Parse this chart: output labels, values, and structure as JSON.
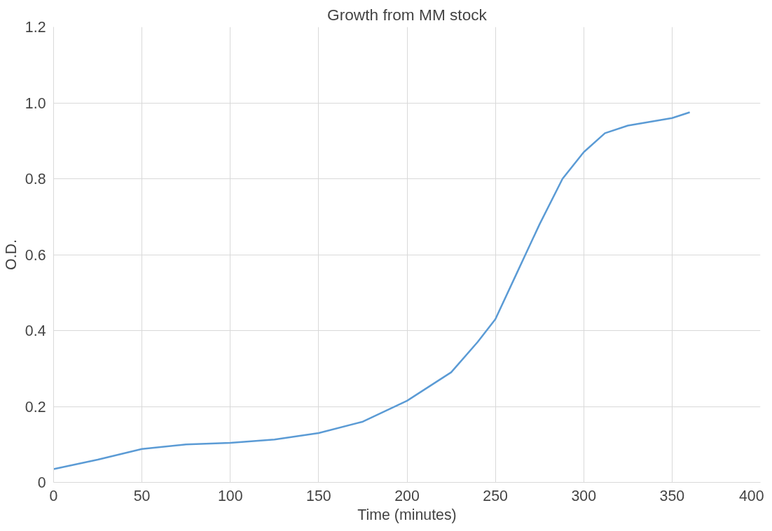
{
  "chart_data": {
    "type": "line",
    "title": "Growth from MM stock",
    "xlabel": "Time (minutes)",
    "ylabel": "O.D.",
    "x": [
      0,
      25,
      50,
      75,
      100,
      125,
      150,
      175,
      200,
      225,
      240,
      250,
      262,
      275,
      288,
      300,
      312,
      325,
      350,
      360
    ],
    "series": [
      {
        "color": "#5b9bd5",
        "values": [
          0.035,
          0.06,
          0.088,
          0.1,
          0.104,
          0.113,
          0.13,
          0.16,
          0.215,
          0.29,
          0.37,
          0.43,
          0.55,
          0.68,
          0.8,
          0.87,
          0.92,
          0.94,
          0.96,
          0.975
        ]
      }
    ],
    "xlim": [
      0,
      400
    ],
    "xticks": [
      0,
      50,
      100,
      150,
      200,
      250,
      300,
      350,
      400
    ],
    "ylim": [
      0,
      1.2
    ],
    "yticks": [
      0,
      {
        "value": 0.2,
        "label": "0.2"
      },
      {
        "value": 0.4,
        "label": "0.4"
      },
      {
        "value": 0.6,
        "label": "0.6"
      },
      {
        "value": 0.8,
        "label": "0.8"
      },
      {
        "value": 1.0,
        "label": "1.0"
      },
      {
        "value": 1.2,
        "label": "1.2"
      }
    ],
    "grid": true,
    "marker": "none",
    "line_style": "solid"
  }
}
